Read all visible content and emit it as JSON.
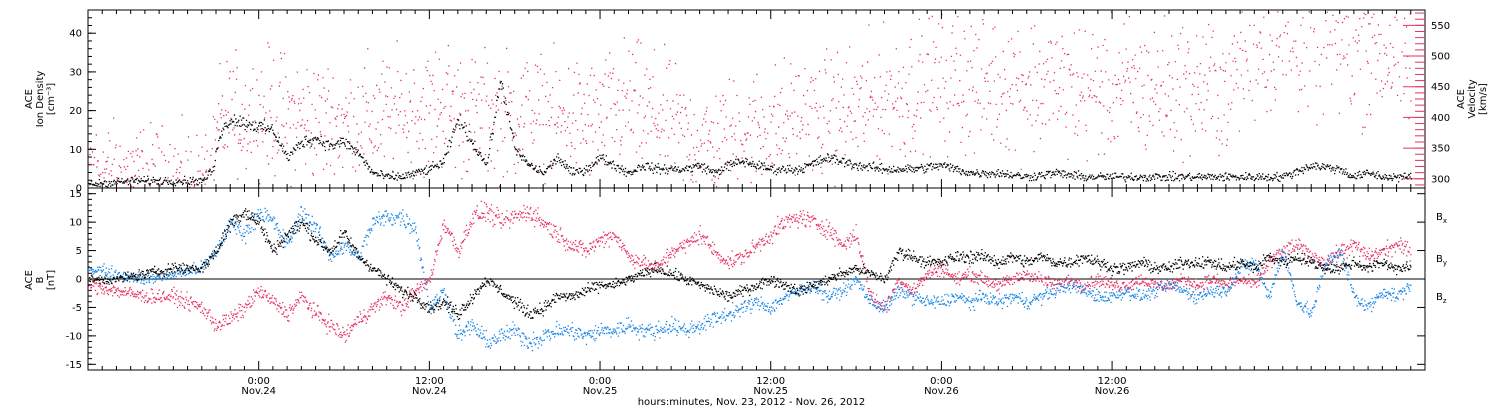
{
  "chart_data": [
    {
      "type": "scatter",
      "panel": "top",
      "ylabel_left": [
        "ACE",
        "Ion Density",
        "[cm⁻³]"
      ],
      "ylabel_right": [
        "ACE",
        "Velocity",
        "[km/s]"
      ],
      "x_range_hours": [
        0,
        94
      ],
      "ylim_left": [
        0,
        46
      ],
      "ylim_right": [
        285,
        575
      ],
      "yticks_left": [
        0,
        10,
        20,
        30,
        40
      ],
      "yticks_right": [
        300,
        350,
        400,
        450,
        500,
        550
      ],
      "colors": {
        "density": "#000000",
        "velocity": "#e8305f"
      },
      "series": [
        {
          "name": "density",
          "axis": "left",
          "x": [
            0,
            3,
            6,
            8,
            8.8,
            9.2,
            10,
            11,
            12,
            13,
            14,
            15,
            16,
            17,
            18,
            19,
            20,
            21,
            22,
            23,
            24,
            25,
            26,
            27,
            28,
            29,
            30,
            31,
            32,
            33,
            34,
            35,
            36,
            37,
            38,
            39,
            40,
            41,
            42,
            43,
            44,
            45,
            46,
            47,
            48,
            50,
            52,
            54,
            56,
            58,
            60,
            62,
            64,
            66,
            68,
            70,
            72,
            74,
            76,
            78,
            80,
            82,
            84,
            86,
            88,
            89,
            90,
            91,
            92,
            93
          ],
          "y": [
            1,
            2,
            2,
            2,
            5,
            14,
            18,
            17,
            16,
            15,
            8,
            12,
            13,
            11,
            12,
            9,
            4,
            3,
            3,
            4,
            5,
            7,
            18,
            12,
            6,
            28,
            10,
            6,
            4,
            8,
            4,
            5,
            8,
            6,
            4,
            6,
            5,
            5,
            5,
            6,
            4,
            6,
            7,
            6,
            5,
            5,
            8,
            6,
            5,
            5,
            6,
            4,
            4,
            3,
            4,
            3,
            3,
            3,
            3,
            3,
            3,
            3,
            3,
            6,
            5,
            3,
            4,
            3,
            3,
            3
          ]
        },
        {
          "name": "velocity",
          "axis": "right",
          "x": [
            0,
            2,
            4,
            6,
            8,
            8.8,
            9.2,
            10,
            11,
            12,
            13,
            14,
            15,
            16,
            17,
            18,
            19,
            20,
            21,
            22,
            23,
            24,
            25,
            26,
            27,
            28,
            29,
            30,
            31,
            32,
            33,
            34,
            35,
            36,
            37,
            38,
            39,
            40,
            41,
            42,
            43,
            44,
            45,
            46,
            47,
            48,
            49,
            50,
            51,
            52,
            53,
            54,
            55,
            56,
            57,
            58,
            59,
            60,
            61,
            62,
            63,
            64,
            65,
            66,
            67,
            68,
            69,
            70,
            71,
            72,
            73,
            74,
            75,
            76,
            77,
            78,
            79,
            79.6,
            80.2,
            81,
            82,
            83,
            84,
            85,
            86,
            87,
            88,
            89,
            90,
            91,
            92,
            93
          ],
          "y": [
            320,
            312,
            310,
            305,
            300,
            310,
            390,
            400,
            400,
            405,
            410,
            400,
            402,
            395,
            395,
            390,
            395,
            400,
            402,
            405,
            408,
            410,
            430,
            410,
            400,
            405,
            410,
            400,
            410,
            400,
            395,
            400,
            398,
            395,
            410,
            425,
            408,
            405,
            390,
            370,
            362,
            358,
            370,
            380,
            385,
            388,
            395,
            400,
            395,
            405,
            410,
            415,
            422,
            430,
            438,
            445,
            455,
            460,
            465,
            460,
            455,
            465,
            460,
            455,
            452,
            450,
            448,
            445,
            447,
            448,
            450,
            447,
            445,
            448,
            445,
            447,
            450,
            445,
            448,
            505,
            530,
            535,
            532,
            540,
            530,
            535,
            525,
            522,
            520,
            510,
            505,
            505
          ]
        }
      ]
    },
    {
      "type": "scatter",
      "panel": "bottom",
      "ylabel_left": [
        "ACE",
        "B",
        "[nT]"
      ],
      "x_range_hours": [
        0,
        94
      ],
      "ylim": [
        -16,
        16
      ],
      "yticks": [
        -15,
        -10,
        -5,
        0,
        5,
        10,
        15
      ],
      "legend_position": "right",
      "colors": {
        "Bx": "#000000",
        "By": "#1a86e6",
        "Bz": "#e8305f"
      },
      "legend": [
        {
          "label": "B",
          "sub": "x",
          "color": "#000000"
        },
        {
          "label": "B",
          "sub": "y",
          "color": "#1a86e6"
        },
        {
          "label": "B",
          "sub": "z",
          "color": "#e8305f"
        }
      ],
      "series": [
        {
          "name": "Bx",
          "x": [
            0,
            2,
            4,
            6,
            8,
            9,
            10,
            11,
            12,
            13,
            14,
            15,
            16,
            17,
            18,
            19,
            20,
            21,
            22,
            23,
            24,
            25,
            26,
            27,
            28,
            29,
            30,
            31,
            32,
            33,
            34,
            35,
            36,
            37,
            38,
            39,
            40,
            41,
            42,
            43,
            44,
            45,
            46,
            47,
            48,
            49,
            50,
            51,
            52,
            53,
            54,
            55,
            56,
            57,
            58,
            59,
            60,
            61,
            62,
            63,
            64,
            65,
            66,
            67,
            68,
            69,
            70,
            71,
            72,
            73,
            74,
            75,
            76,
            77,
            78,
            79,
            80,
            81,
            82,
            83,
            84,
            85,
            86,
            87,
            88,
            89,
            90,
            91,
            92,
            93
          ],
          "y": [
            0,
            0,
            1,
            2,
            2,
            5,
            10,
            12,
            10,
            5,
            8,
            10,
            7,
            5,
            8,
            4,
            2,
            0,
            -2,
            -3,
            -5,
            -4,
            -6,
            -3,
            0,
            -2,
            -4,
            -6,
            -5,
            -3,
            -3,
            -2,
            -1,
            -1,
            0,
            1,
            2,
            1,
            0,
            -1,
            -2,
            -3,
            -2,
            -1,
            0,
            -1,
            -2,
            -1,
            0,
            1,
            2,
            1,
            0,
            5,
            4,
            3,
            3,
            4,
            4,
            4,
            3,
            4,
            3,
            4,
            3,
            3,
            4,
            3,
            2,
            2,
            3,
            2,
            2,
            3,
            3,
            3,
            2,
            3,
            2,
            4,
            3,
            4,
            3,
            2,
            2,
            3,
            2,
            3,
            2,
            2
          ]
        },
        {
          "name": "By",
          "x": [
            0,
            2,
            4,
            6,
            8,
            9,
            10,
            11,
            12,
            13,
            14,
            15,
            16,
            17,
            18,
            19,
            20,
            21,
            22,
            23,
            24,
            25,
            26,
            27,
            28,
            29,
            30,
            31,
            32,
            33,
            34,
            35,
            36,
            37,
            38,
            39,
            40,
            41,
            42,
            43,
            44,
            45,
            46,
            47,
            48,
            49,
            50,
            51,
            52,
            53,
            54,
            55,
            56,
            57,
            58,
            59,
            60,
            61,
            62,
            63,
            64,
            65,
            66,
            67,
            68,
            69,
            70,
            71,
            72,
            73,
            74,
            75,
            76,
            77,
            78,
            79,
            80,
            81,
            82,
            83,
            84,
            85,
            86,
            87,
            88,
            89,
            90,
            91,
            92,
            93
          ],
          "y": [
            2,
            1,
            0,
            1,
            2,
            5,
            10,
            8,
            12,
            10,
            6,
            12,
            9,
            4,
            6,
            4,
            10,
            11,
            11,
            9,
            -5,
            -2,
            -10,
            -8,
            -11,
            -10,
            -9,
            -11,
            -10,
            -9,
            -9,
            -10,
            -9,
            -9,
            -8,
            -9,
            -9,
            -8,
            -9,
            -8,
            -7,
            -6,
            -5,
            -4,
            -5,
            -3,
            -2,
            -1,
            -3,
            -2,
            0,
            -4,
            -5,
            -2,
            -3,
            -4,
            -4,
            -3,
            -4,
            -3,
            -4,
            -3,
            -4,
            -3,
            -2,
            -1,
            -2,
            -3,
            -3,
            -2,
            -3,
            -2,
            -1,
            -2,
            -3,
            -2,
            -2,
            2,
            3,
            -3,
            5,
            -4,
            -6,
            3,
            5,
            -3,
            -5,
            -2,
            -3,
            -1
          ]
        },
        {
          "name": "Bz",
          "x": [
            0,
            2,
            4,
            6,
            8,
            9,
            10,
            11,
            12,
            13,
            14,
            15,
            16,
            17,
            18,
            19,
            20,
            21,
            22,
            23,
            24,
            25,
            26,
            27,
            28,
            29,
            30,
            31,
            32,
            33,
            34,
            35,
            36,
            37,
            38,
            39,
            40,
            41,
            42,
            43,
            44,
            45,
            46,
            47,
            48,
            49,
            50,
            51,
            52,
            53,
            54,
            55,
            56,
            57,
            58,
            59,
            60,
            61,
            62,
            63,
            64,
            65,
            66,
            67,
            68,
            69,
            70,
            71,
            72,
            73,
            74,
            75,
            76,
            77,
            78,
            79,
            80,
            81,
            82,
            83,
            84,
            85,
            86,
            87,
            88,
            89,
            90,
            91,
            92,
            93
          ],
          "y": [
            -1,
            -2,
            -3,
            -3,
            -5,
            -8,
            -7,
            -5,
            -2,
            -4,
            -6,
            -3,
            -6,
            -8,
            -10,
            -7,
            -5,
            -3,
            -5,
            -2,
            0,
            10,
            5,
            11,
            12,
            10,
            11,
            12,
            10,
            8,
            6,
            5,
            7,
            8,
            4,
            3,
            2,
            5,
            6,
            8,
            5,
            3,
            4,
            6,
            8,
            10,
            11,
            10,
            9,
            6,
            8,
            -3,
            -5,
            0,
            -2,
            1,
            2,
            0,
            1,
            0,
            -1,
            0,
            1,
            0,
            -1,
            0,
            -1,
            0,
            -1,
            -1,
            0,
            -1,
            -1,
            0,
            -1,
            0,
            -1,
            0,
            -1,
            3,
            5,
            6,
            4,
            3,
            5,
            6,
            4,
            5,
            6,
            5
          ]
        }
      ]
    }
  ],
  "x_axis": {
    "ticks": [
      {
        "hour": 12,
        "time": "0:00",
        "date": "Nov.24"
      },
      {
        "hour": 24,
        "time": "12:00",
        "date": "Nov.24"
      },
      {
        "hour": 36,
        "time": "0:00",
        "date": "Nov.25"
      },
      {
        "hour": 48,
        "time": "12:00",
        "date": "Nov.25"
      },
      {
        "hour": 60,
        "time": "0:00",
        "date": "Nov.26"
      },
      {
        "hour": 72,
        "time": "12:00",
        "date": "Nov.26"
      }
    ],
    "minor_every_hours": 1,
    "xlabel": "hours:minutes, Nov. 23, 2012 - Nov. 26, 2012"
  }
}
